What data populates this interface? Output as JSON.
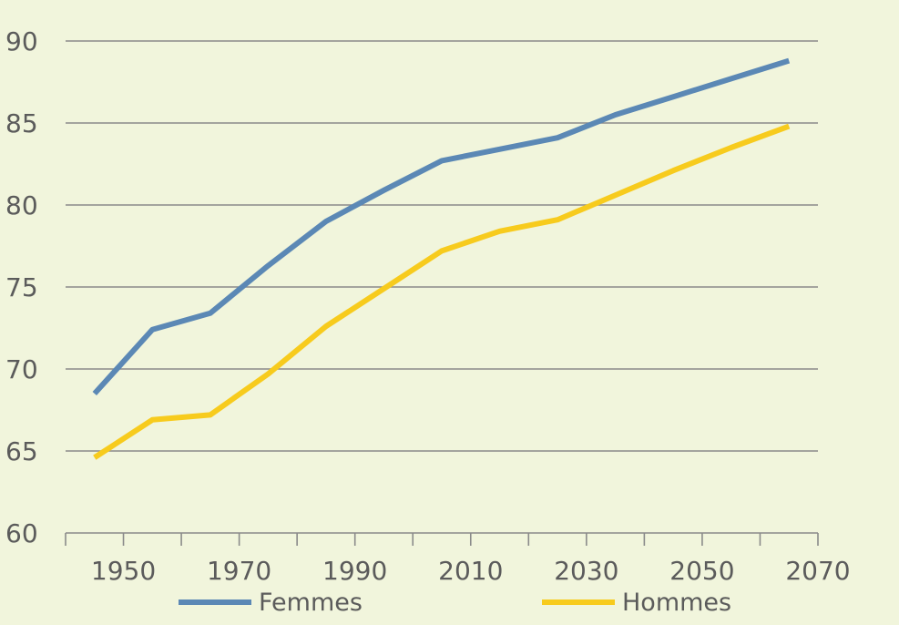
{
  "chart_data": {
    "type": "line",
    "title": "",
    "xlabel": "",
    "ylabel": "",
    "x": [
      1945,
      1955,
      1965,
      1975,
      1985,
      1995,
      2005,
      2015,
      2025,
      2035,
      2045,
      2055,
      2065
    ],
    "x_tick_labels": [
      "1950",
      "1970",
      "1990",
      "2010",
      "2030",
      "2050",
      "2070"
    ],
    "x_tick_values": [
      1950,
      1970,
      1990,
      2010,
      2030,
      2050,
      2070
    ],
    "xlim": [
      1940,
      2070
    ],
    "ylim": [
      60,
      90
    ],
    "y_ticks": [
      60,
      65,
      70,
      75,
      80,
      85,
      90
    ],
    "grid": true,
    "legend_position": "bottom",
    "series": [
      {
        "name": "Femmes",
        "color": "#5b88b5",
        "values": [
          68.5,
          72.4,
          73.4,
          76.3,
          79.0,
          80.9,
          82.7,
          83.4,
          84.1,
          85.5,
          86.6,
          87.7,
          88.8
        ]
      },
      {
        "name": "Hommes",
        "color": "#f7cb1d",
        "values": [
          64.6,
          66.9,
          67.2,
          69.7,
          72.6,
          74.9,
          77.2,
          78.4,
          79.1,
          80.6,
          82.1,
          83.5,
          84.8
        ]
      }
    ]
  }
}
